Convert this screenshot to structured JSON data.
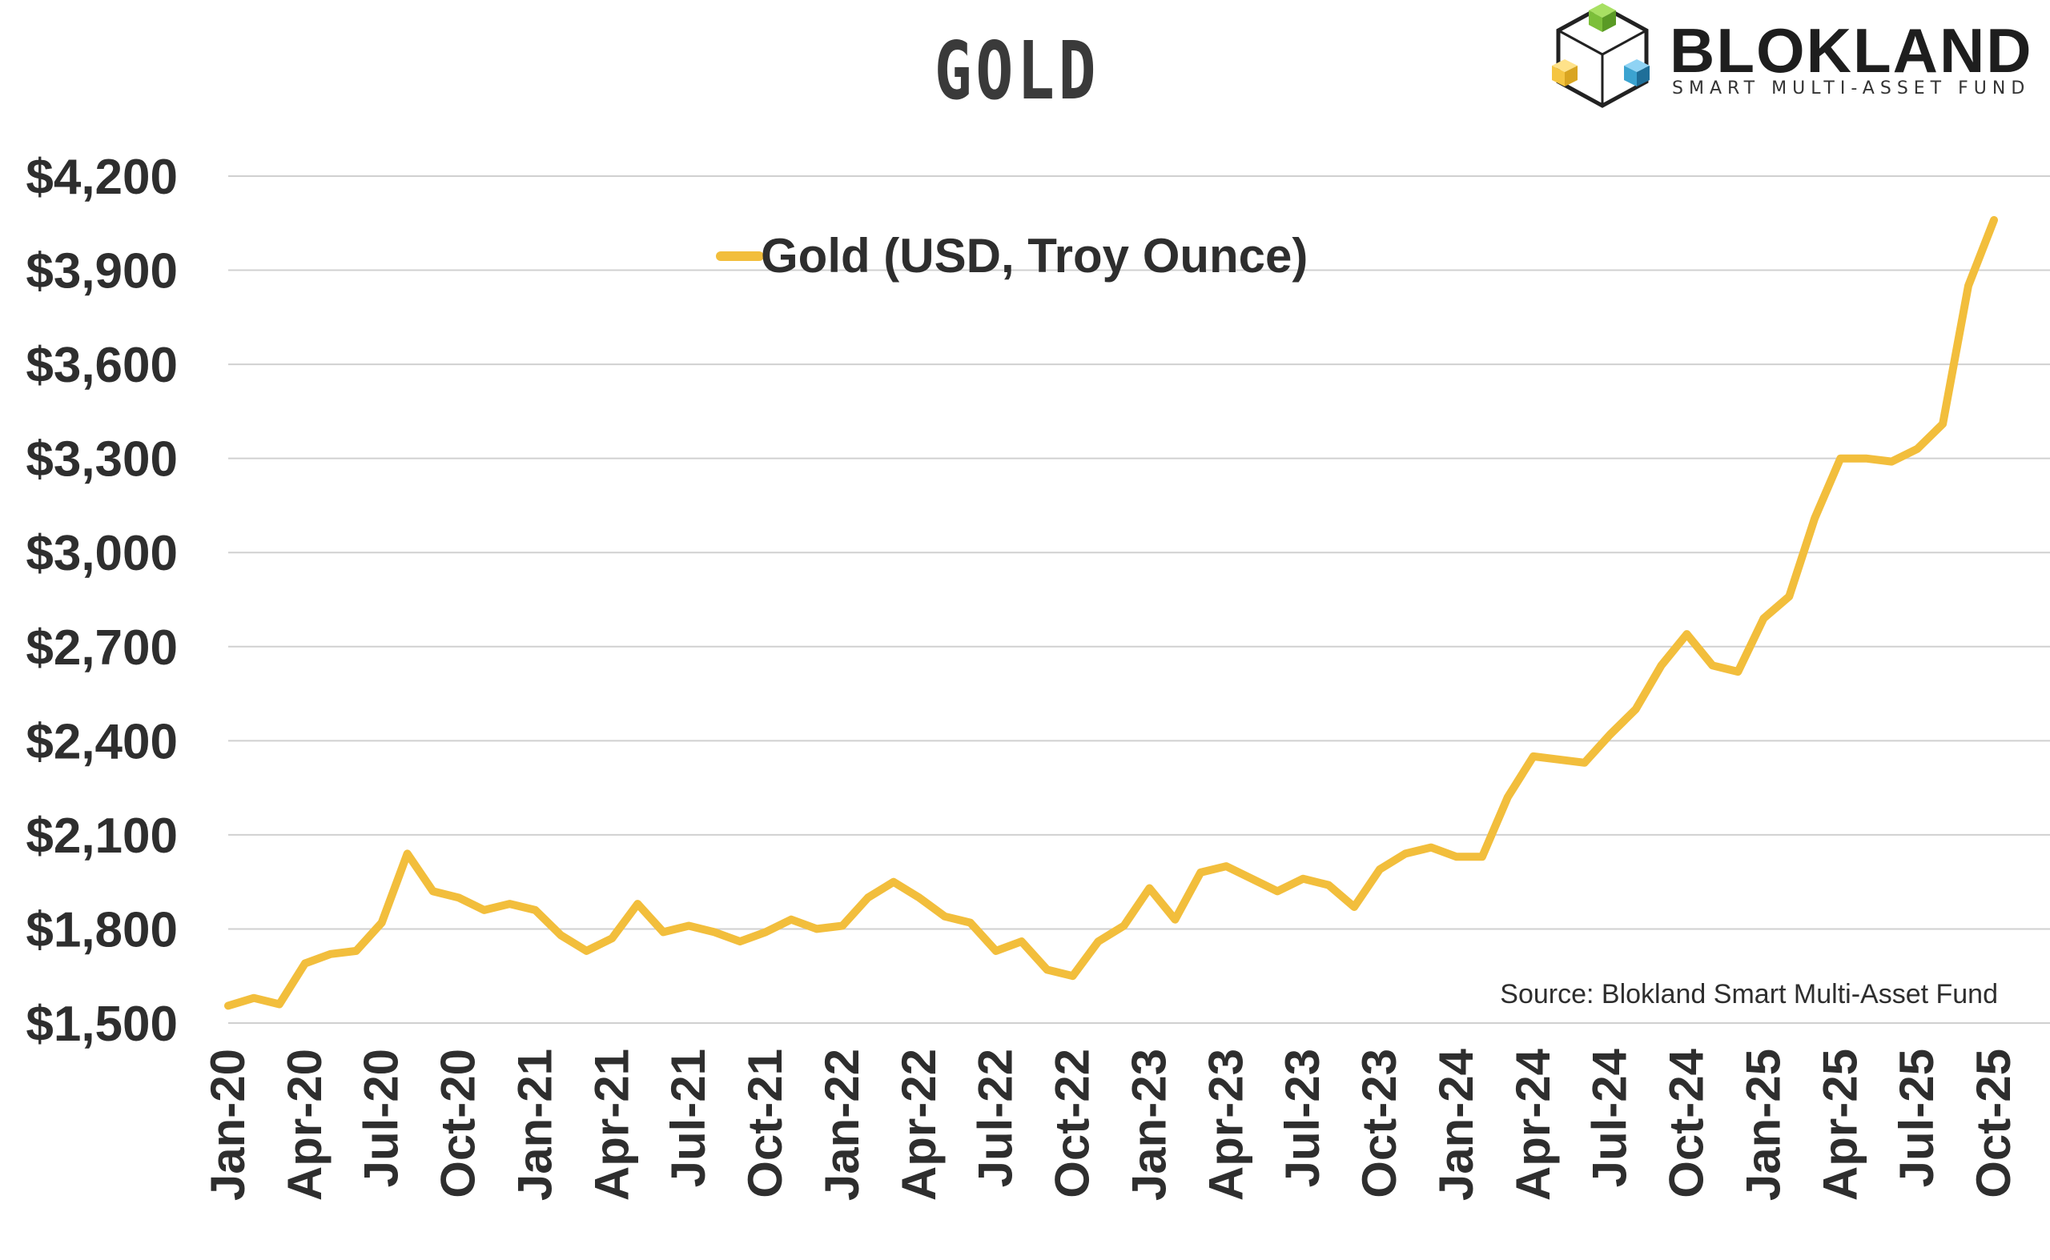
{
  "title": "GOLD",
  "logo": {
    "name": "BLOKLAND",
    "tagline": "SMART MULTI-ASSET FUND"
  },
  "source": "Source: Blokland Smart Multi-Asset Fund",
  "colors": {
    "line": "#f2be3c",
    "grid": "#d0d0d0",
    "text": "#2e2e2e"
  },
  "chart_data": {
    "type": "line",
    "title": "GOLD",
    "xlabel": "",
    "ylabel": "",
    "ylim": [
      1500,
      4200
    ],
    "yticks": [
      "$1,500",
      "$1,800",
      "$2,100",
      "$2,400",
      "$2,700",
      "$3,000",
      "$3,300",
      "$3,600",
      "$3,900",
      "$4,200"
    ],
    "ytick_values": [
      1500,
      1800,
      2100,
      2400,
      2700,
      3000,
      3300,
      3600,
      3900,
      4200
    ],
    "xticks": [
      "Jan-20",
      "Apr-20",
      "Jul-20",
      "Oct-20",
      "Jan-21",
      "Apr-21",
      "Jul-21",
      "Oct-21",
      "Jan-22",
      "Apr-22",
      "Jul-22",
      "Oct-22",
      "Jan-23",
      "Apr-23",
      "Jul-23",
      "Oct-23",
      "Jan-24",
      "Apr-24",
      "Jul-24",
      "Oct-24",
      "Jan-25",
      "Apr-25",
      "Jul-25",
      "Oct-25"
    ],
    "grid": true,
    "legend_position": "top-center",
    "series": [
      {
        "name": "Gold (USD, Troy Ounce)",
        "x": [
          "2020-01",
          "2020-02",
          "2020-03",
          "2020-04",
          "2020-05",
          "2020-06",
          "2020-07",
          "2020-08",
          "2020-09",
          "2020-10",
          "2020-11",
          "2020-12",
          "2021-01",
          "2021-02",
          "2021-03",
          "2021-04",
          "2021-05",
          "2021-06",
          "2021-07",
          "2021-08",
          "2021-09",
          "2021-10",
          "2021-11",
          "2021-12",
          "2022-01",
          "2022-02",
          "2022-03",
          "2022-04",
          "2022-05",
          "2022-06",
          "2022-07",
          "2022-08",
          "2022-09",
          "2022-10",
          "2022-11",
          "2022-12",
          "2023-01",
          "2023-02",
          "2023-03",
          "2023-04",
          "2023-05",
          "2023-06",
          "2023-07",
          "2023-08",
          "2023-09",
          "2023-10",
          "2023-11",
          "2023-12",
          "2024-01",
          "2024-02",
          "2024-03",
          "2024-04",
          "2024-05",
          "2024-06",
          "2024-07",
          "2024-08",
          "2024-09",
          "2024-10",
          "2024-11",
          "2024-12",
          "2025-01",
          "2025-02",
          "2025-03",
          "2025-04",
          "2025-05",
          "2025-06",
          "2025-07",
          "2025-08",
          "2025-09",
          "2025-10"
        ],
        "values": [
          1555,
          1580,
          1560,
          1690,
          1720,
          1730,
          1820,
          2040,
          1920,
          1900,
          1860,
          1880,
          1860,
          1780,
          1730,
          1770,
          1880,
          1790,
          1810,
          1790,
          1760,
          1790,
          1830,
          1800,
          1810,
          1900,
          1950,
          1900,
          1840,
          1820,
          1730,
          1760,
          1670,
          1650,
          1760,
          1810,
          1930,
          1830,
          1980,
          2000,
          1960,
          1920,
          1960,
          1940,
          1870,
          1990,
          2040,
          2060,
          2030,
          2030,
          2220,
          2350,
          2340,
          2330,
          2420,
          2500,
          2640,
          2740,
          2640,
          2620,
          2790,
          2860,
          3110,
          3300,
          3300,
          3290,
          3330,
          3410,
          3850,
          4060
        ]
      }
    ]
  }
}
